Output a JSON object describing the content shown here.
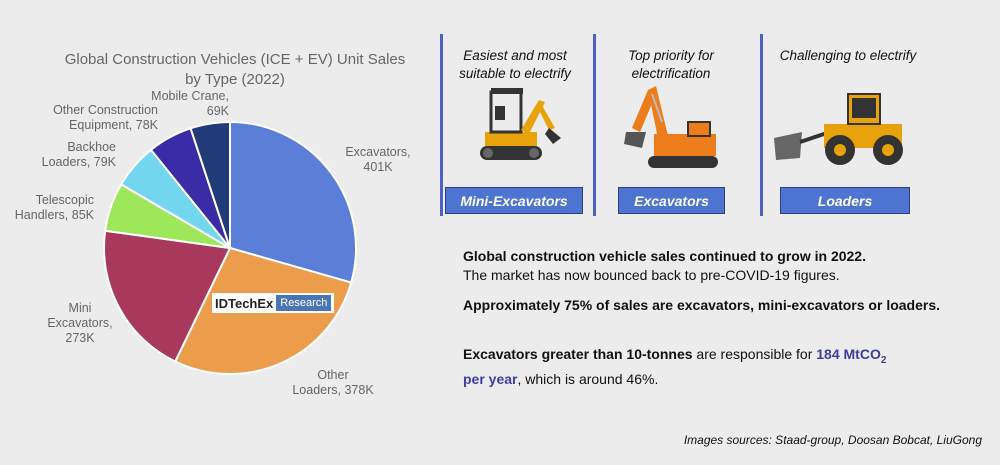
{
  "chart_data": {
    "type": "pie",
    "title_line1": "Global Construction Vehicles (ICE + EV) Unit Sales",
    "title_line2": "by Type (2022)",
    "slices": [
      {
        "label_lines": [
          "Excavators,",
          "401K"
        ],
        "value": 401,
        "color": "#5b7ed9"
      },
      {
        "label_lines": [
          "Other",
          "Loaders, 378K"
        ],
        "value": 378,
        "color": "#eb9d4c"
      },
      {
        "label_lines": [
          "Mini",
          "Excavators,",
          "273K"
        ],
        "value": 273,
        "color": "#a8395c"
      },
      {
        "label_lines": [
          "Telescopic",
          "Handlers, 85K"
        ],
        "value": 85,
        "color": "#9ee65a"
      },
      {
        "label_lines": [
          "Backhoe",
          "Loaders, 79K"
        ],
        "value": 79,
        "color": "#73d6ef"
      },
      {
        "label_lines": [
          "Other Construction",
          "Equipment, 78K"
        ],
        "value": 78,
        "color": "#3a2ba6"
      },
      {
        "label_lines": [
          "Mobile Crane,",
          "69K"
        ],
        "value": 69,
        "color": "#213a78"
      }
    ],
    "unit": "K"
  },
  "logo": {
    "brand": "IDTechEx",
    "tag": "Research"
  },
  "categories": [
    {
      "heading": [
        "Easiest and most",
        "suitable to electrify"
      ],
      "badge": "Mini-Excavators",
      "icon": "mini-excavator-icon"
    },
    {
      "heading": [
        "Top priority for",
        "electrification"
      ],
      "badge": "Excavators",
      "icon": "excavator-icon"
    },
    {
      "heading": [
        "Challenging to electrify"
      ],
      "badge": "Loaders",
      "icon": "wheel-loader-icon"
    }
  ],
  "text": {
    "p1_bold": "Global construction vehicle sales continued to grow in 2022.",
    "p1_rest": "The market has now bounced back to pre-COVID-19 figures.",
    "p2": "Approximately 75% of sales are excavators, mini-excavators or loaders.",
    "p3_bold": "Excavators greater than 10-tonnes",
    "p3_mid": " are responsible for ",
    "p3_value": "184 MtCO",
    "p3_sub": "2",
    "p3_value2": "per year",
    "p3_end": ", which is around 46%."
  },
  "source": "Images sources: Staad-group, Doosan Bobcat, LiuGong",
  "colors": {
    "accent": "#4c74d0",
    "divider": "#4e62c4"
  }
}
